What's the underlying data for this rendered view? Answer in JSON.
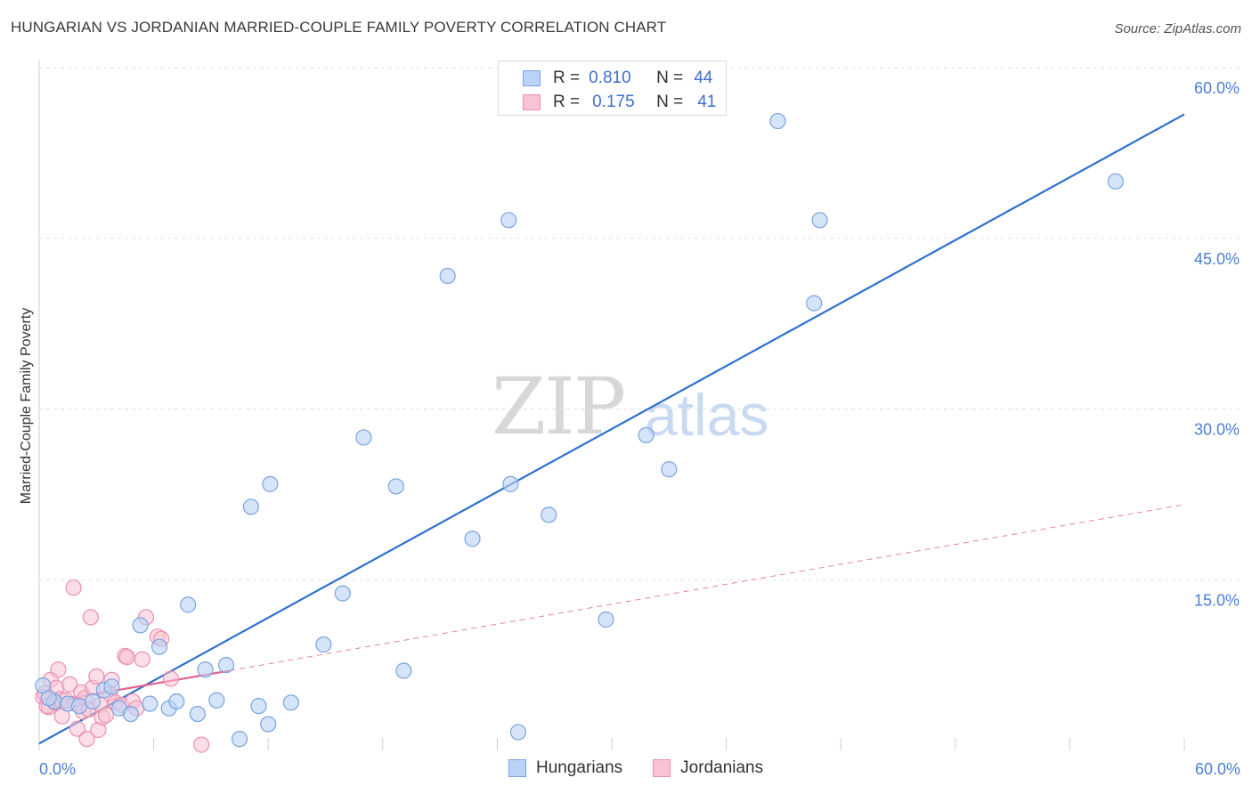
{
  "title": "HUNGARIAN VS JORDANIAN MARRIED-COUPLE FAMILY POVERTY CORRELATION CHART",
  "source": "Source: ZipAtlas.com",
  "watermark": {
    "zip": "ZIP",
    "atlas": "atlas"
  },
  "legend": {
    "r_label": "R =",
    "n_label": "N =",
    "rows": [
      {
        "r": "0.810",
        "n": "44"
      },
      {
        "r": "0.175",
        "n": "41"
      }
    ]
  },
  "colors": {
    "hungarians_fill": "#b9d2f5",
    "hungarians_stroke": "#7aa3e0",
    "hungarians_line": "#2f6fcf",
    "jordanians_fill": "#f8c3d3",
    "jordanians_stroke": "#eb8fae",
    "jordanians_line": "#e5628f",
    "grid": "#e3e3e3",
    "tick_text": "#4a7fd4"
  },
  "chart_data": {
    "type": "scatter",
    "title": "HUNGARIAN VS JORDANIAN MARRIED-COUPLE FAMILY POVERTY CORRELATION CHART",
    "xlabel": "",
    "ylabel": "Married-Couple Family Poverty",
    "xlim": [
      0,
      60
    ],
    "ylim": [
      0,
      60
    ],
    "x_tick_labels": [
      "0.0%",
      "60.0%"
    ],
    "y_ticks": [
      15,
      30,
      45,
      60
    ],
    "y_tick_labels": [
      "15.0%",
      "30.0%",
      "45.0%",
      "60.0%"
    ],
    "grid": true,
    "legend_position": "top-center",
    "series": [
      {
        "name": "Hungarians",
        "r": 0.81,
        "n": 44,
        "trendline": {
          "x": [
            0,
            60
          ],
          "y": [
            0.6,
            55.9
          ],
          "style": "solid"
        },
        "points": [
          [
            0.2,
            5.7
          ],
          [
            0.8,
            4.3
          ],
          [
            1.5,
            4.1
          ],
          [
            2.1,
            3.9
          ],
          [
            2.8,
            4.3
          ],
          [
            3.4,
            5.3
          ],
          [
            3.8,
            5.6
          ],
          [
            4.2,
            3.7
          ],
          [
            4.8,
            3.2
          ],
          [
            5.3,
            11.0
          ],
          [
            5.8,
            4.1
          ],
          [
            6.3,
            9.1
          ],
          [
            6.8,
            3.7
          ],
          [
            7.2,
            4.3
          ],
          [
            7.8,
            12.8
          ],
          [
            8.3,
            3.2
          ],
          [
            8.7,
            7.1
          ],
          [
            9.3,
            4.4
          ],
          [
            9.8,
            7.5
          ],
          [
            10.5,
            1.0
          ],
          [
            11.1,
            21.4
          ],
          [
            11.5,
            3.9
          ],
          [
            12.0,
            2.3
          ],
          [
            12.1,
            23.4
          ],
          [
            13.2,
            4.2
          ],
          [
            14.9,
            9.3
          ],
          [
            15.9,
            13.8
          ],
          [
            17.0,
            27.5
          ],
          [
            18.7,
            23.2
          ],
          [
            19.1,
            7.0
          ],
          [
            21.4,
            41.7
          ],
          [
            22.7,
            18.6
          ],
          [
            24.6,
            46.6
          ],
          [
            24.7,
            23.4
          ],
          [
            25.1,
            1.6
          ],
          [
            26.7,
            20.7
          ],
          [
            29.7,
            11.5
          ],
          [
            31.8,
            27.7
          ],
          [
            33.0,
            24.7
          ],
          [
            38.7,
            55.3
          ],
          [
            40.6,
            39.3
          ],
          [
            40.9,
            46.6
          ],
          [
            56.4,
            50.0
          ],
          [
            0.5,
            4.6
          ]
        ]
      },
      {
        "name": "Jordanians",
        "r": 0.175,
        "n": 41,
        "trendline": {
          "x": [
            0,
            60
          ],
          "y": [
            4.1,
            21.6
          ],
          "style": "solid-then-dashed",
          "solid_until_x": 10
        },
        "points": [
          [
            0.2,
            4.7
          ],
          [
            0.3,
            5.0
          ],
          [
            0.5,
            3.8
          ],
          [
            0.6,
            6.2
          ],
          [
            0.8,
            4.2
          ],
          [
            0.9,
            5.5
          ],
          [
            1.0,
            7.1
          ],
          [
            1.1,
            4.5
          ],
          [
            1.2,
            3.0
          ],
          [
            1.4,
            4.4
          ],
          [
            1.6,
            5.8
          ],
          [
            1.8,
            14.3
          ],
          [
            1.9,
            4.1
          ],
          [
            2.0,
            1.9
          ],
          [
            2.2,
            5.1
          ],
          [
            2.3,
            3.4
          ],
          [
            2.4,
            4.6
          ],
          [
            2.5,
            1.0
          ],
          [
            2.6,
            3.6
          ],
          [
            2.7,
            11.7
          ],
          [
            2.8,
            5.5
          ],
          [
            3.0,
            6.5
          ],
          [
            3.1,
            1.8
          ],
          [
            3.2,
            4.0
          ],
          [
            3.3,
            2.9
          ],
          [
            3.5,
            3.1
          ],
          [
            3.7,
            5.0
          ],
          [
            3.8,
            6.2
          ],
          [
            4.0,
            4.2
          ],
          [
            4.3,
            4.0
          ],
          [
            4.5,
            8.3
          ],
          [
            4.6,
            8.2
          ],
          [
            4.9,
            4.3
          ],
          [
            5.1,
            3.7
          ],
          [
            5.4,
            8.0
          ],
          [
            5.6,
            11.7
          ],
          [
            6.2,
            10.0
          ],
          [
            6.4,
            9.8
          ],
          [
            6.9,
            6.3
          ],
          [
            8.5,
            0.5
          ],
          [
            0.4,
            3.9
          ]
        ]
      }
    ]
  }
}
